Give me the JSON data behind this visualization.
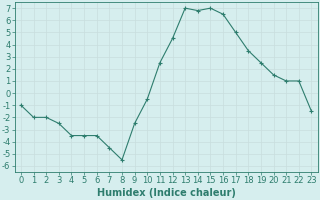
{
  "x": [
    0,
    1,
    2,
    3,
    4,
    5,
    6,
    7,
    8,
    9,
    10,
    11,
    12,
    13,
    14,
    15,
    16,
    17,
    18,
    19,
    20,
    21,
    22,
    23
  ],
  "y": [
    -1,
    -2,
    -2,
    -2.5,
    -3.5,
    -3.5,
    -3.5,
    -4.5,
    -5.5,
    -2.5,
    -0.5,
    2.5,
    4.5,
    7,
    6.8,
    7,
    6.5,
    5,
    3.5,
    2.5,
    1.5,
    1,
    1,
    -1.5
  ],
  "line_color": "#2E7D6E",
  "bg_color": "#D6EEEE",
  "grid_color_minor": "#C8DEDE",
  "grid_color_major": "#B8CECE",
  "xlabel": "Humidex (Indice chaleur)",
  "xlim": [
    -0.5,
    23.5
  ],
  "ylim": [
    -6.5,
    7.5
  ],
  "yticks": [
    -6,
    -5,
    -4,
    -3,
    -2,
    -1,
    0,
    1,
    2,
    3,
    4,
    5,
    6,
    7
  ],
  "xticks": [
    0,
    1,
    2,
    3,
    4,
    5,
    6,
    7,
    8,
    9,
    10,
    11,
    12,
    13,
    14,
    15,
    16,
    17,
    18,
    19,
    20,
    21,
    22,
    23
  ],
  "label_fontsize": 7,
  "tick_fontsize": 6
}
